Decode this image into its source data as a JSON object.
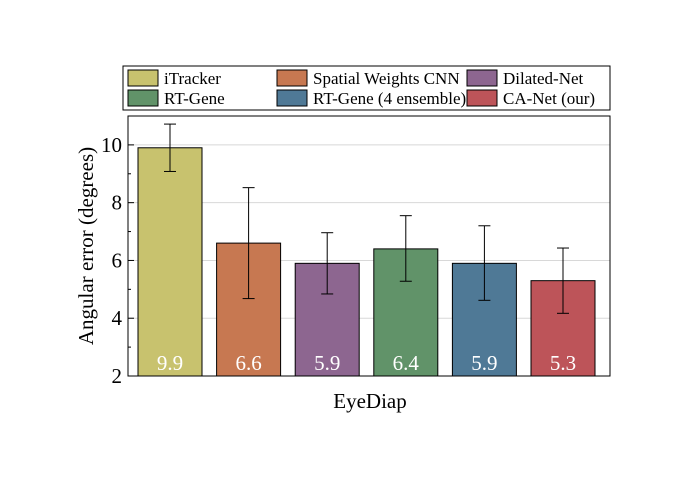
{
  "chart_data": {
    "type": "bar",
    "xlabel": "EyeDiap",
    "ylabel": "Angular error (degrees)",
    "ylim": [
      2,
      11
    ],
    "yticks": [
      2,
      4,
      6,
      8,
      10
    ],
    "grid": true,
    "legend_position": "top",
    "series": [
      {
        "name": "iTracker",
        "value": 9.9,
        "value_label": "9.9",
        "err_low": 9.08,
        "err_high": 10.72,
        "color": "#c8c26e"
      },
      {
        "name": "Spatial Weights CNN",
        "value": 6.6,
        "value_label": "6.6",
        "err_low": 4.68,
        "err_high": 8.52,
        "color": "#c77851"
      },
      {
        "name": "Dilated-Net",
        "value": 5.9,
        "value_label": "5.9",
        "err_low": 4.84,
        "err_high": 6.96,
        "color": "#8d6690"
      },
      {
        "name": "RT-Gene",
        "value": 6.4,
        "value_label": "6.4",
        "err_low": 5.28,
        "err_high": 7.55,
        "color": "#619369"
      },
      {
        "name": "RT-Gene (4 ensemble)",
        "value": 5.9,
        "value_label": "5.9",
        "err_low": 4.62,
        "err_high": 7.2,
        "color": "#4f7996"
      },
      {
        "name": "CA-Net (our)",
        "value": 5.3,
        "value_label": "5.3",
        "err_low": 4.17,
        "err_high": 6.43,
        "color": "#bd5459"
      }
    ],
    "legend_order": [
      0,
      1,
      2,
      3,
      4,
      5
    ]
  }
}
